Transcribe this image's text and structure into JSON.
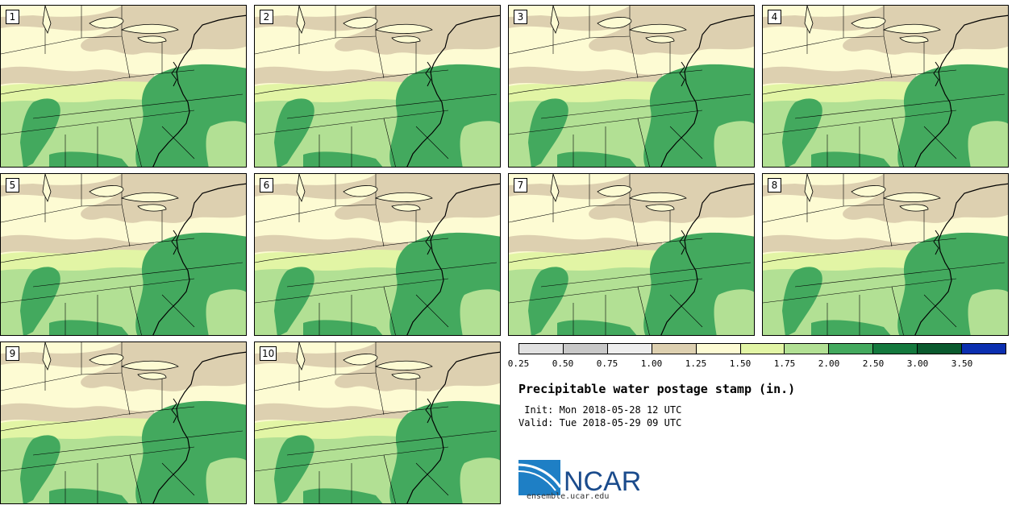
{
  "panels": [
    {
      "label": "1"
    },
    {
      "label": "2"
    },
    {
      "label": "3"
    },
    {
      "label": "4"
    },
    {
      "label": "5"
    },
    {
      "label": "6"
    },
    {
      "label": "7"
    },
    {
      "label": "8"
    },
    {
      "label": "9"
    },
    {
      "label": "10"
    }
  ],
  "legend": {
    "ticks": [
      "0.25",
      "0.50",
      "0.75",
      "1.00",
      "1.25",
      "1.50",
      "1.75",
      "2.00",
      "2.50",
      "3.00",
      "3.50"
    ],
    "colors": [
      "#e1e1e1",
      "#c8c8c8",
      "#eeeeee",
      "#ddd0b0",
      "#fdfbd3",
      "#e2f5a5",
      "#b2e094",
      "#43a95e",
      "#14793e",
      "#0a5a2e",
      "#0b2fb0"
    ]
  },
  "colors": {
    "pw_below_1_25": "#ddd0b0",
    "pw_1_25_1_50": "#fdfbd3",
    "pw_1_50_1_75": "#e2f5a5",
    "pw_1_75_2_00": "#b2e094",
    "pw_2_00_2_50": "#43a95e"
  },
  "title": "Precipitable water postage stamp (in.)",
  "init": " Init: Mon 2018-05-28 12 UTC",
  "valid": "Valid: Tue 2018-05-29 09 UTC",
  "logo": {
    "text": "NCAR",
    "url": "ensemble.ucar.edu"
  }
}
